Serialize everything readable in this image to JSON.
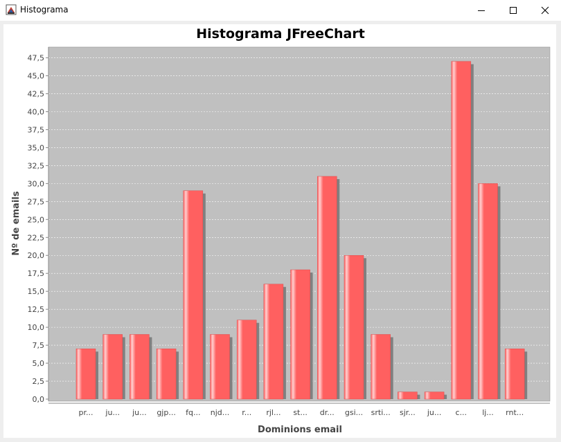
{
  "window": {
    "title": "Histograma",
    "icon": "java-cup-icon",
    "controls": [
      "minimize-icon",
      "maximize-icon",
      "close-icon"
    ]
  },
  "chart_data": {
    "type": "bar",
    "title": "Histograma JFreeChart",
    "xlabel": "Dominions email",
    "ylabel": "Nº de emails",
    "categories": [
      "pr...",
      "ju...",
      "ju...",
      "gjp...",
      "fq...",
      "njd...",
      "r...",
      "rjl...",
      "st...",
      "dr...",
      "gsi...",
      "srti...",
      "sjr...",
      "ju...",
      "c...",
      "lj...",
      "rnt..."
    ],
    "values": [
      7,
      9,
      9,
      7,
      29,
      9,
      11,
      16,
      18,
      31,
      20,
      9,
      1,
      1,
      47,
      30,
      7
    ],
    "ylim": [
      0,
      49
    ],
    "yticks": [
      "0,0",
      "2,5",
      "5,0",
      "7,5",
      "10,0",
      "12,5",
      "15,0",
      "17,5",
      "20,0",
      "22,5",
      "25,0",
      "27,5",
      "30,0",
      "32,5",
      "35,0",
      "37,5",
      "40,0",
      "42,5",
      "45,0",
      "47,5"
    ],
    "grid": true,
    "legend": "none",
    "colors": {
      "bar": "#ff6060",
      "bar_highlight": "#ffd0d0",
      "bar_shadow": "#808080",
      "plot_background": "#c0c0c0",
      "gridline": "#ffffff"
    }
  }
}
